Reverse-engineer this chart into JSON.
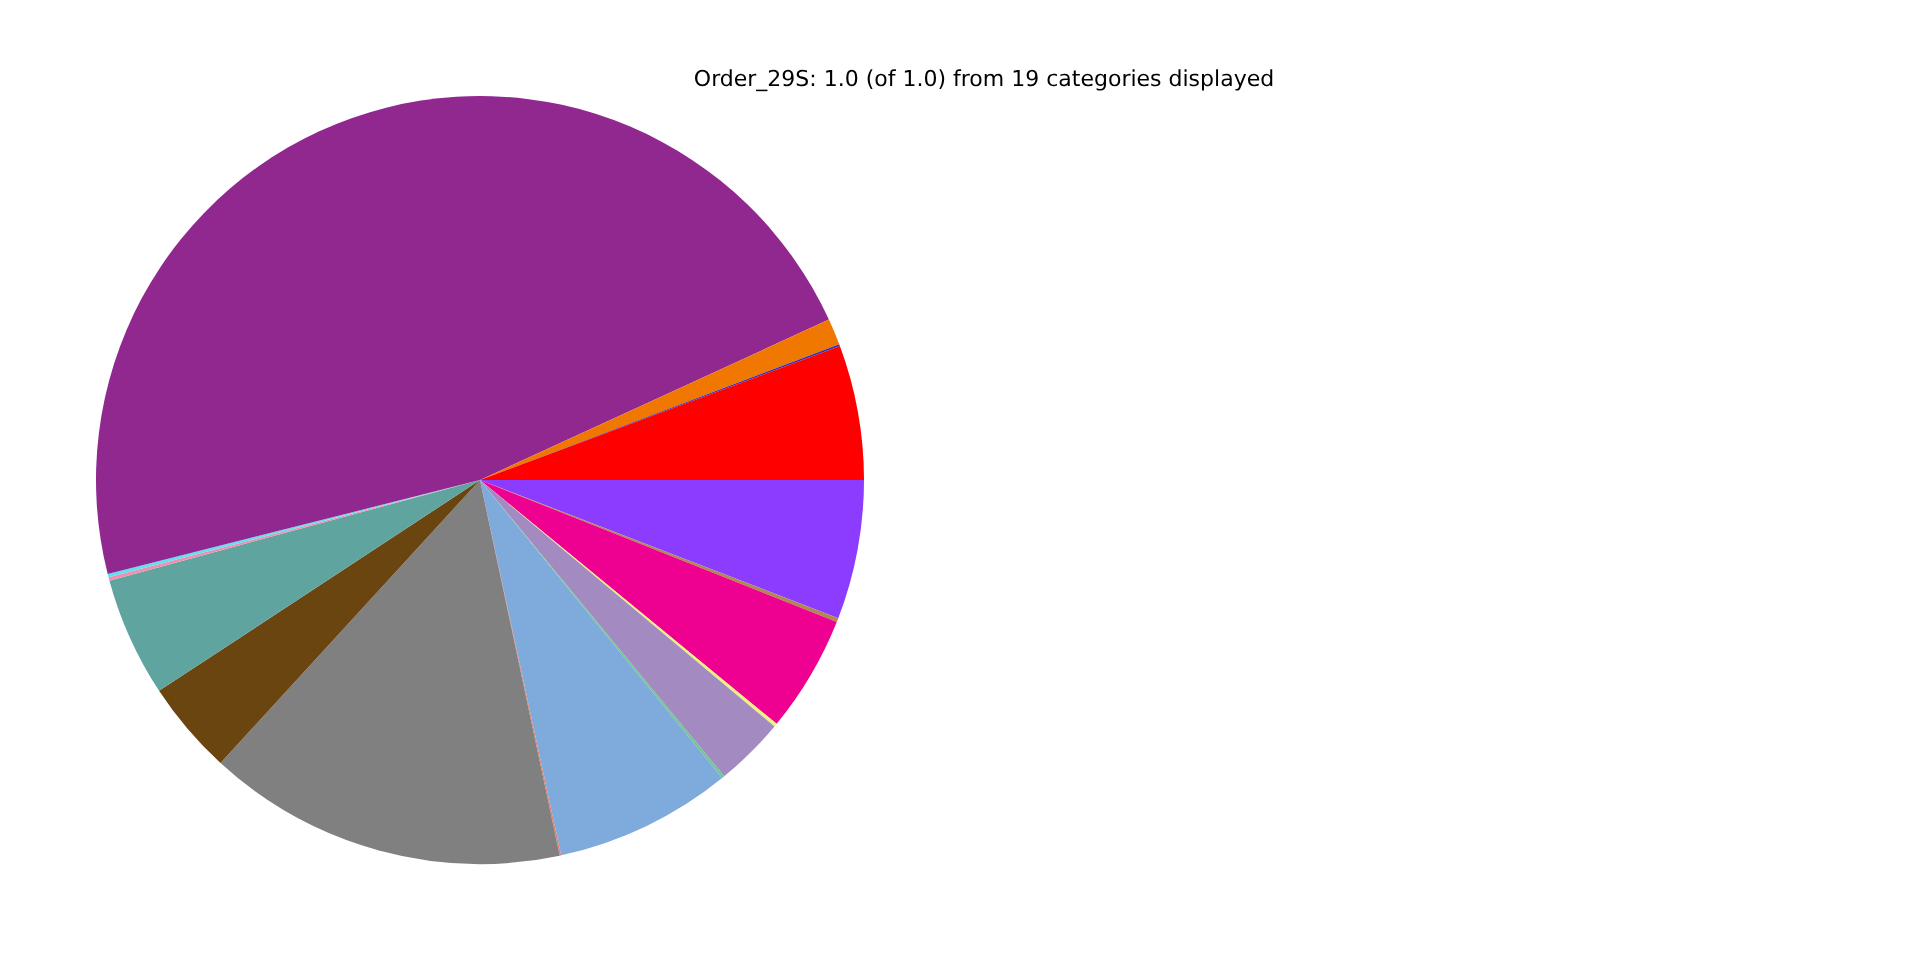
{
  "chart_data": {
    "type": "pie",
    "title": "Order_29S: 1.0 (of 1.0) from 19 categories displayed",
    "categories": [
      null,
      null,
      null,
      null,
      null,
      null,
      null,
      null,
      null,
      null,
      null,
      null,
      null,
      null,
      null,
      null,
      null
    ],
    "values": [
      5.86,
      0.17,
      4.92,
      0.14,
      2.94,
      0.11,
      7.47,
      0.06,
      15.14,
      3.94,
      5.03,
      0.14,
      0.14,
      47.08,
      1.11,
      0.08,
      5.67
    ],
    "colors": [
      "#8c3cff",
      "#b08850",
      "#ee0090",
      "#f0f080",
      "#a38bc2",
      "#70c890",
      "#7faadc",
      "#e08070",
      "#808080",
      "#6b4510",
      "#60a4a0",
      "#f090b0",
      "#60e0f0",
      "#902890",
      "#f07800",
      "#3030c0",
      "#ff0000"
    ],
    "legend": false
  }
}
